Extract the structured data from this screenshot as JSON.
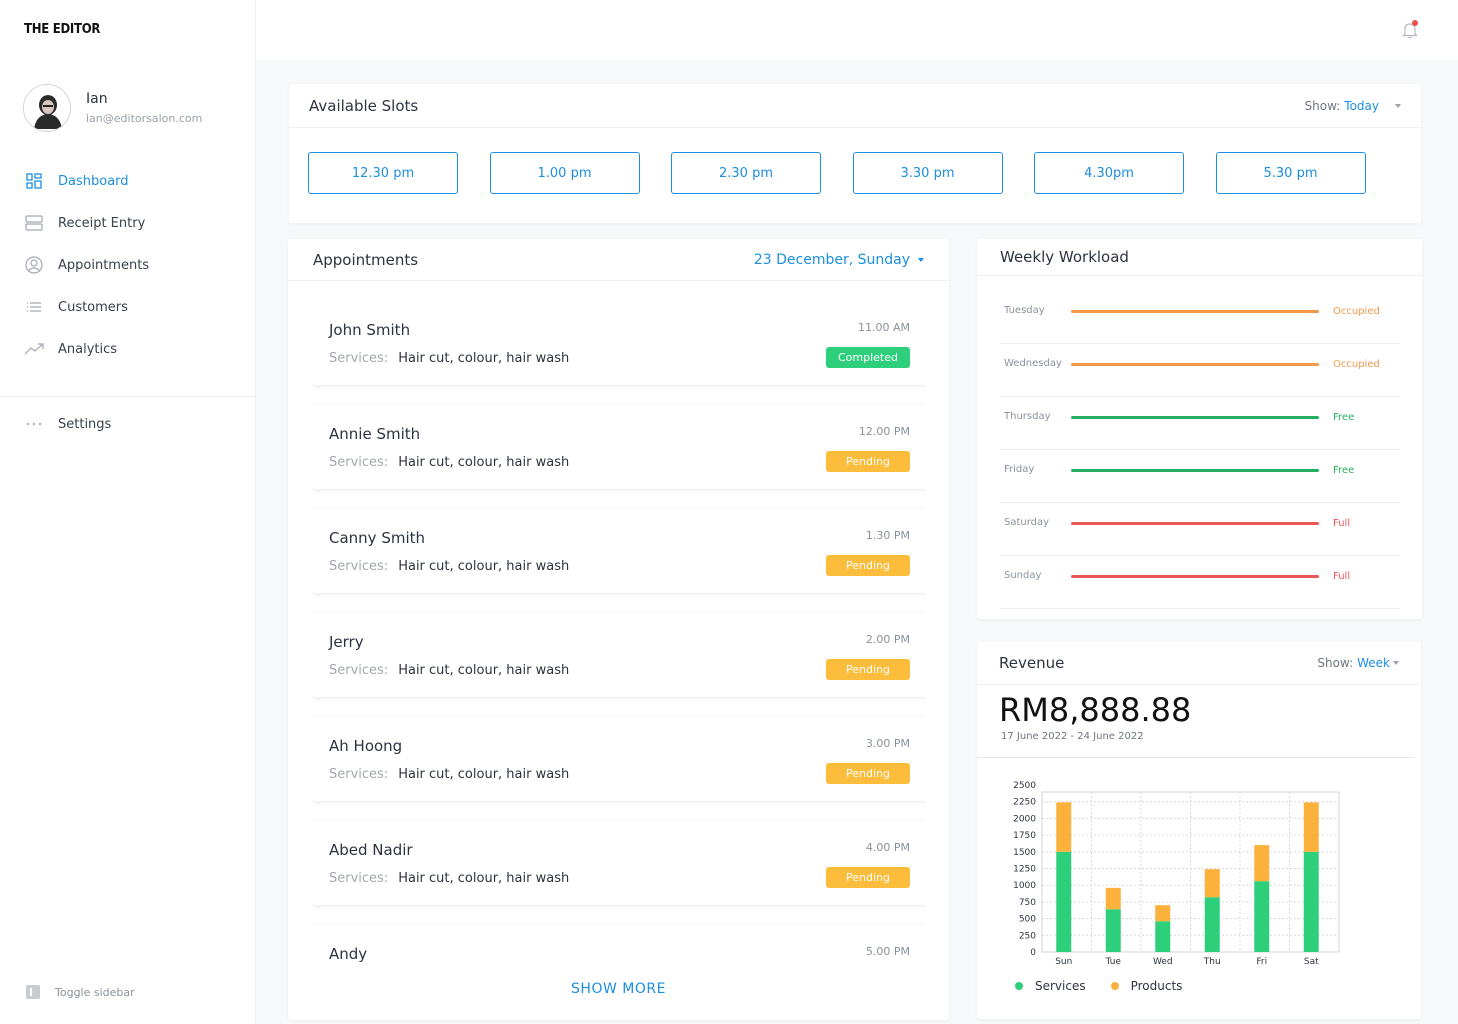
{
  "brand": "THE EDITOR",
  "user": {
    "name": "Ian",
    "email": "ian@editorsalon.com"
  },
  "nav": [
    {
      "label": "Dashboard",
      "icon": "grid-icon",
      "active": true
    },
    {
      "label": "Receipt Entry",
      "icon": "receipt-icon",
      "active": false
    },
    {
      "label": "Appointments",
      "icon": "user-circle-icon",
      "active": false
    },
    {
      "label": "Customers",
      "icon": "list-icon",
      "active": false
    },
    {
      "label": "Analytics",
      "icon": "trend-icon",
      "active": false
    }
  ],
  "settings": {
    "label": "Settings",
    "icon": "dots-icon"
  },
  "toggle_sidebar": "Toggle sidebar",
  "colors": {
    "accent": "#1b8fe0",
    "completed": "#2ecf7b",
    "pending": "#fbbd3b",
    "occupied": "#f2994a",
    "free": "#27ae60",
    "full": "#eb5757",
    "services": "#2ecf7b",
    "products": "#fbb13c"
  },
  "slots": {
    "title": "Available Slots",
    "show_label": "Show:",
    "show_value": "Today",
    "times": [
      "12.30 pm",
      "1.00 pm",
      "2.30 pm",
      "3.30 pm",
      "4.30pm",
      "5.30 pm"
    ]
  },
  "appointments": {
    "title": "Appointments",
    "date": "23 December, Sunday",
    "services_label": "Services:",
    "show_more": "SHOW MORE",
    "items": [
      {
        "name": "John Smith",
        "services": "Hair cut, colour, hair wash",
        "time": "11.00 AM",
        "status": "Completed"
      },
      {
        "name": "Annie Smith",
        "services": "Hair cut, colour, hair wash",
        "time": "12.00 PM",
        "status": "Pending"
      },
      {
        "name": "Canny Smith",
        "services": "Hair cut, colour, hair wash",
        "time": "1.30 PM",
        "status": "Pending"
      },
      {
        "name": "Jerry",
        "services": "Hair cut, colour, hair wash",
        "time": "2.00 PM",
        "status": "Pending"
      },
      {
        "name": "Ah Hoong",
        "services": "Hair cut, colour, hair wash",
        "time": "3.00 PM",
        "status": "Pending"
      },
      {
        "name": "Abed Nadir",
        "services": "Hair cut, colour, hair wash",
        "time": "4.00 PM",
        "status": "Pending"
      },
      {
        "name": "Andy",
        "services": "",
        "time": "5.00 PM",
        "status": ""
      }
    ]
  },
  "workload": {
    "title": "Weekly Workload",
    "rows": [
      {
        "day": "Tuesday",
        "status": "Occupied"
      },
      {
        "day": "Wednesday",
        "status": "Occupied"
      },
      {
        "day": "Thursday",
        "status": "Free"
      },
      {
        "day": "Friday",
        "status": "Free"
      },
      {
        "day": "Saturday",
        "status": "Full"
      },
      {
        "day": "Sunday",
        "status": "Full"
      }
    ]
  },
  "revenue": {
    "title": "Revenue",
    "show_label": "Show:",
    "show_value": "Week",
    "amount": "RM8,888.88",
    "range": "17 June 2022 - 24 June 2022"
  },
  "chart_data": {
    "type": "bar",
    "stacked": true,
    "categories": [
      "Sun",
      "Tue",
      "Wed",
      "Thu",
      "Fri",
      "Sat"
    ],
    "series": [
      {
        "name": "Services",
        "values": [
          1500,
          640,
          460,
          820,
          1060,
          1500
        ]
      },
      {
        "name": "Products",
        "values": [
          740,
          320,
          240,
          420,
          540,
          740
        ]
      }
    ],
    "yticks": [
      0,
      250,
      500,
      750,
      1000,
      1250,
      1500,
      1750,
      2000,
      2250,
      2500
    ],
    "ylim": [
      0,
      2500
    ],
    "grid": true,
    "legend": "bottom"
  }
}
